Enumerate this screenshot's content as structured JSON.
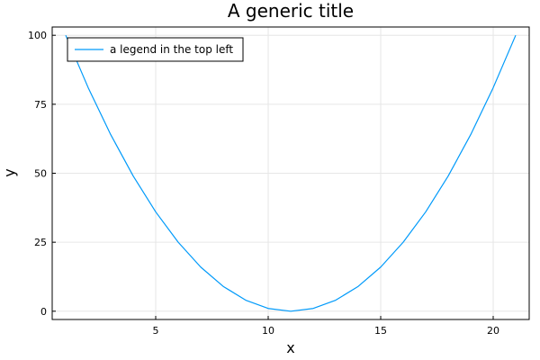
{
  "chart_data": {
    "type": "line",
    "title": "A generic title",
    "xlabel": "x",
    "ylabel": "y",
    "xlim": [
      0.4,
      21.6
    ],
    "ylim": [
      -3,
      103
    ],
    "xticks": [
      5,
      10,
      15,
      20
    ],
    "yticks": [
      0,
      25,
      50,
      75,
      100
    ],
    "grid": true,
    "legend_position": "top-left",
    "series": [
      {
        "name": "a legend in the top left",
        "color": "#009AFA",
        "x": [
          1,
          2,
          3,
          4,
          5,
          6,
          7,
          8,
          9,
          10,
          11,
          12,
          13,
          14,
          15,
          16,
          17,
          18,
          19,
          20,
          21
        ],
        "y": [
          100,
          81,
          64,
          49,
          36,
          25,
          16,
          9,
          4,
          1,
          0,
          1,
          4,
          9,
          16,
          25,
          36,
          49,
          64,
          81,
          100
        ]
      }
    ]
  }
}
